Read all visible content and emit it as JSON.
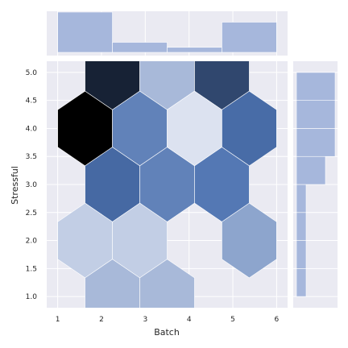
{
  "chart_data": {
    "type": "heatmap",
    "subtype": "hexbin-jointplot",
    "xlabel": "Batch",
    "ylabel": "Stressful",
    "xlim": [
      0.75,
      6.25
    ],
    "ylim": [
      0.8,
      5.2
    ],
    "x_ticks": [
      "1",
      "2",
      "3",
      "4",
      "5",
      "6"
    ],
    "y_ticks": [
      "1.0",
      "1.5",
      "2.0",
      "2.5",
      "3.0",
      "3.5",
      "4.0",
      "4.5",
      "5.0"
    ],
    "hex_cells": [
      {
        "x": 2.25,
        "y": 5.0,
        "shade": 0.88
      },
      {
        "x": 3.5,
        "y": 5.0,
        "shade": 0.25
      },
      {
        "x": 4.75,
        "y": 5.0,
        "shade": 0.75
      },
      {
        "x": 1.625,
        "y": 4.0,
        "shade": 1.0
      },
      {
        "x": 2.875,
        "y": 4.0,
        "shade": 0.52
      },
      {
        "x": 4.125,
        "y": 4.0,
        "shade": 0.05
      },
      {
        "x": 5.375,
        "y": 4.0,
        "shade": 0.62
      },
      {
        "x": 2.25,
        "y": 3.0,
        "shade": 0.63
      },
      {
        "x": 3.5,
        "y": 3.0,
        "shade": 0.52
      },
      {
        "x": 4.75,
        "y": 3.0,
        "shade": 0.57
      },
      {
        "x": 1.625,
        "y": 2.0,
        "shade": 0.15
      },
      {
        "x": 2.875,
        "y": 2.0,
        "shade": 0.15
      },
      {
        "x": 4.125,
        "y": 2.0,
        "shade": 0.0
      },
      {
        "x": 5.375,
        "y": 2.0,
        "shade": 0.35
      },
      {
        "x": 2.25,
        "y": 1.0,
        "shade": 0.25
      },
      {
        "x": 3.5,
        "y": 1.0,
        "shade": 0.25
      }
    ],
    "marginal_x": {
      "bins": [
        [
          1,
          2.25
        ],
        [
          2.25,
          3.5
        ],
        [
          3.5,
          4.75
        ],
        [
          4.75,
          6
        ]
      ],
      "counts": [
        4,
        1,
        0.5,
        3
      ]
    },
    "marginal_y": {
      "bins": [
        [
          1.0,
          1.5
        ],
        [
          1.5,
          2.0
        ],
        [
          2.0,
          2.5
        ],
        [
          2.5,
          3.0
        ],
        [
          3.0,
          3.5
        ],
        [
          3.5,
          4.0
        ],
        [
          4.0,
          4.5
        ],
        [
          4.5,
          5.0
        ]
      ],
      "counts": [
        0.5,
        0.5,
        0.5,
        0.5,
        1.5,
        2,
        2,
        2
      ]
    },
    "grid": true,
    "colors": {
      "background": "#eaeaf2",
      "bar": "#a6b7dc",
      "hex_low": "#e9ecf6",
      "hex_mid": "#4c72b0",
      "hex_high": "#000000"
    }
  }
}
